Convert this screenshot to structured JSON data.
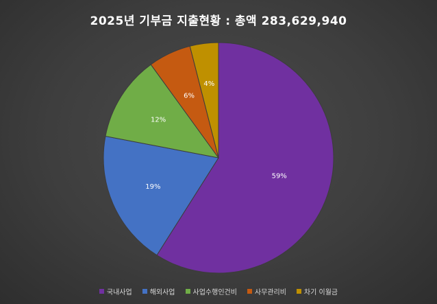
{
  "chart_data": {
    "type": "pie",
    "title": "2025년 기부금 지출현황 : 총액 283,629,940",
    "categories": [
      "국내사업",
      "해외사업",
      "사업수행인건비",
      "사무관리비",
      "차기 이월금"
    ],
    "values": [
      59,
      19,
      12,
      6,
      4
    ],
    "data_labels": [
      "59%",
      "19%",
      "12%",
      "6%",
      "4%"
    ],
    "colors": [
      "#7030a0",
      "#4472c4",
      "#70ad47",
      "#c55a11",
      "#bf9000"
    ],
    "start_angle_deg": 0,
    "direction": "clockwise",
    "legend_position": "bottom"
  }
}
